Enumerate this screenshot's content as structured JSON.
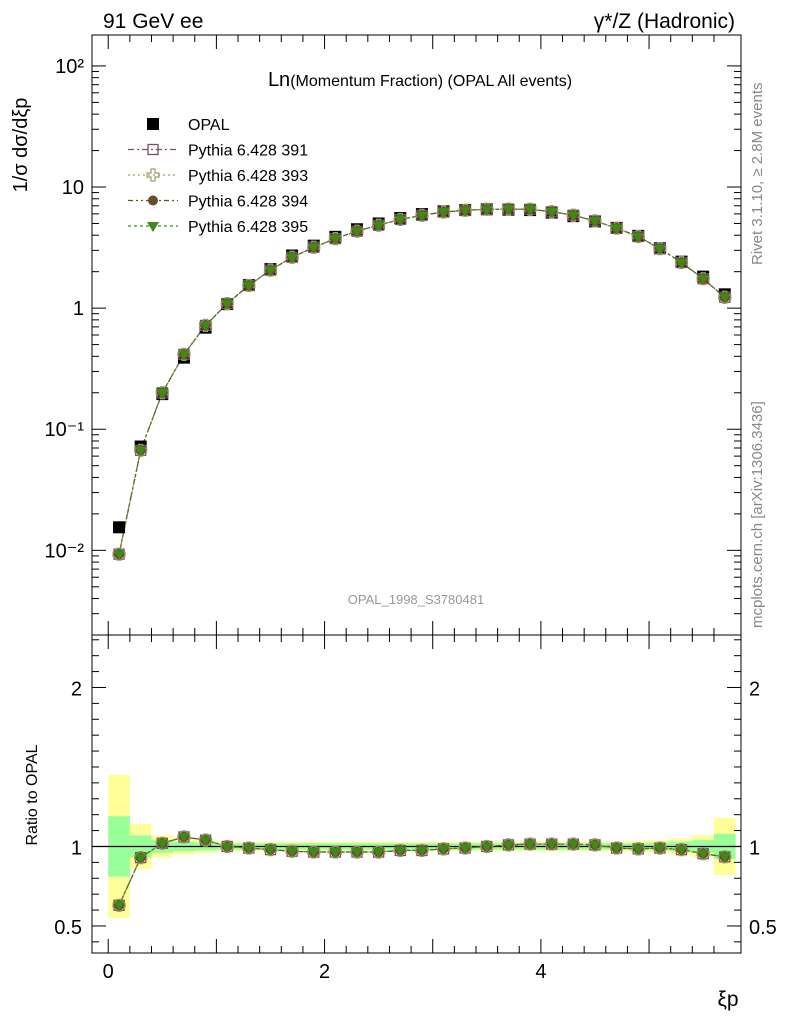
{
  "header": {
    "left": "91 GeV ee",
    "right": "γ*/Z (Hadronic)"
  },
  "side_labels": {
    "rivet": "Rivet 3.1.10, ≥ 2.8M events",
    "mcplots": "mcplots.cern.ch [arXiv:1306.3436]"
  },
  "watermark": "OPAL_1998_S3780481",
  "colors": {
    "data": "#000000",
    "s391": "#7b4f63",
    "s393": "#a09a6a",
    "s394": "#6b4a2a",
    "s395": "#3f8a17",
    "band_inner": "#99ff99",
    "band_outer": "#ffff99"
  },
  "chart_data": [
    {
      "type": "scatter",
      "title_main": "Ln",
      "title_rest": "(Momentum Fraction) (OPAL All events)",
      "ylabel": "1/σ dσ/dξp",
      "yscale": "log",
      "ylim": [
        0.002,
        180
      ],
      "xlim": [
        -0.15,
        5.85
      ],
      "ytick_labels": [
        "10⁻²",
        "10⁻¹",
        "1",
        "10",
        "10²"
      ],
      "x": [
        0.1,
        0.3,
        0.5,
        0.7,
        0.9,
        1.1,
        1.3,
        1.5,
        1.7,
        1.9,
        2.1,
        2.3,
        2.5,
        2.7,
        2.9,
        3.1,
        3.3,
        3.5,
        3.7,
        3.9,
        4.1,
        4.3,
        4.5,
        4.7,
        4.9,
        5.1,
        5.3,
        5.5,
        5.7
      ],
      "legend": [
        "OPAL",
        "Pythia 6.428 391",
        "Pythia 6.428 393",
        "Pythia 6.428 394",
        "Pythia 6.428 395"
      ],
      "series": [
        {
          "name": "OPAL",
          "marker": "square-filled",
          "values": [
            0.0155,
            0.072,
            0.195,
            0.39,
            0.69,
            1.08,
            1.55,
            2.1,
            2.72,
            3.28,
            3.88,
            4.48,
            5.0,
            5.55,
            5.98,
            6.3,
            6.45,
            6.55,
            6.5,
            6.45,
            6.15,
            5.75,
            5.2,
            4.6,
            3.95,
            3.12,
            2.42,
            1.82,
            1.3
          ]
        },
        {
          "name": "Pythia 6.428 391",
          "marker": "square-open",
          "values": [
            0.0093,
            0.067,
            0.2,
            0.415,
            0.72,
            1.09,
            1.54,
            2.06,
            2.63,
            3.18,
            3.75,
            4.32,
            4.84,
            5.4,
            5.84,
            6.22,
            6.42,
            6.55,
            6.58,
            6.55,
            6.25,
            5.85,
            5.25,
            4.57,
            3.9,
            3.1,
            2.38,
            1.75,
            1.23
          ]
        },
        {
          "name": "Pythia 6.428 393",
          "marker": "cross-open",
          "values": [
            0.0093,
            0.067,
            0.2,
            0.415,
            0.72,
            1.09,
            1.54,
            2.06,
            2.63,
            3.18,
            3.75,
            4.32,
            4.84,
            5.4,
            5.84,
            6.22,
            6.42,
            6.55,
            6.58,
            6.55,
            6.25,
            5.85,
            5.25,
            4.57,
            3.9,
            3.1,
            2.38,
            1.75,
            1.23
          ]
        },
        {
          "name": "Pythia 6.428 394",
          "marker": "circle",
          "values": [
            0.0093,
            0.067,
            0.2,
            0.415,
            0.72,
            1.09,
            1.54,
            2.06,
            2.63,
            3.18,
            3.75,
            4.32,
            4.84,
            5.4,
            5.84,
            6.22,
            6.42,
            6.55,
            6.58,
            6.55,
            6.25,
            5.85,
            5.25,
            4.57,
            3.9,
            3.1,
            2.38,
            1.75,
            1.23
          ]
        },
        {
          "name": "Pythia 6.428 395",
          "marker": "triangle-down",
          "values": [
            0.0093,
            0.067,
            0.2,
            0.415,
            0.72,
            1.09,
            1.54,
            2.06,
            2.63,
            3.18,
            3.75,
            4.32,
            4.84,
            5.4,
            5.84,
            6.22,
            6.42,
            6.55,
            6.58,
            6.55,
            6.25,
            5.85,
            5.25,
            4.57,
            3.9,
            3.1,
            2.38,
            1.75,
            1.23
          ]
        }
      ]
    },
    {
      "type": "scatter",
      "ylabel": "Ratio to OPAL",
      "xlabel": "ξp",
      "ylim": [
        0.33,
        2.33
      ],
      "xlim": [
        -0.15,
        5.85
      ],
      "x_tick_labels": [
        "0",
        "2",
        "4"
      ],
      "y_tick_labels": [
        "0.5",
        "1",
        "2"
      ],
      "x": [
        0.1,
        0.3,
        0.5,
        0.7,
        0.9,
        1.1,
        1.3,
        1.5,
        1.7,
        1.9,
        2.1,
        2.3,
        2.5,
        2.7,
        2.9,
        3.1,
        3.3,
        3.5,
        3.7,
        3.9,
        4.1,
        4.3,
        4.5,
        4.7,
        4.9,
        5.1,
        5.3,
        5.5,
        5.7
      ],
      "band_inner_halfwidth": [
        0.19,
        0.07,
        0.04,
        0.03,
        0.025,
        0.02,
        0.02,
        0.02,
        0.02,
        0.02,
        0.02,
        0.02,
        0.02,
        0.02,
        0.02,
        0.02,
        0.02,
        0.02,
        0.02,
        0.02,
        0.02,
        0.02,
        0.02,
        0.02,
        0.02,
        0.025,
        0.03,
        0.04,
        0.08
      ],
      "band_outer_halfwidth": [
        0.45,
        0.14,
        0.07,
        0.05,
        0.04,
        0.03,
        0.03,
        0.03,
        0.03,
        0.03,
        0.03,
        0.03,
        0.03,
        0.03,
        0.03,
        0.03,
        0.03,
        0.03,
        0.03,
        0.03,
        0.03,
        0.03,
        0.03,
        0.03,
        0.035,
        0.04,
        0.05,
        0.07,
        0.18
      ],
      "series": [
        {
          "name": "Pythia 6.428 391",
          "values": [
            0.63,
            0.93,
            1.02,
            1.06,
            1.04,
            1.0,
            0.99,
            0.98,
            0.97,
            0.965,
            0.965,
            0.965,
            0.965,
            0.975,
            0.975,
            0.985,
            0.99,
            1.0,
            1.01,
            1.015,
            1.015,
            1.015,
            1.01,
            0.99,
            0.985,
            0.99,
            0.98,
            0.955,
            0.935
          ]
        },
        {
          "name": "Pythia 6.428 393",
          "values": [
            0.63,
            0.93,
            1.02,
            1.06,
            1.04,
            1.0,
            0.99,
            0.98,
            0.97,
            0.965,
            0.965,
            0.965,
            0.965,
            0.975,
            0.975,
            0.985,
            0.99,
            1.0,
            1.01,
            1.015,
            1.015,
            1.015,
            1.01,
            0.99,
            0.985,
            0.99,
            0.98,
            0.955,
            0.935
          ]
        },
        {
          "name": "Pythia 6.428 394",
          "values": [
            0.63,
            0.93,
            1.02,
            1.06,
            1.04,
            1.0,
            0.99,
            0.98,
            0.97,
            0.965,
            0.965,
            0.965,
            0.965,
            0.975,
            0.975,
            0.985,
            0.99,
            1.0,
            1.01,
            1.015,
            1.015,
            1.015,
            1.01,
            0.99,
            0.985,
            0.99,
            0.98,
            0.955,
            0.935
          ]
        },
        {
          "name": "Pythia 6.428 395",
          "values": [
            0.63,
            0.93,
            1.02,
            1.06,
            1.04,
            1.0,
            0.99,
            0.98,
            0.97,
            0.965,
            0.965,
            0.965,
            0.965,
            0.975,
            0.975,
            0.985,
            0.99,
            1.0,
            1.01,
            1.015,
            1.015,
            1.015,
            1.01,
            0.99,
            0.985,
            0.99,
            0.98,
            0.955,
            0.935
          ]
        }
      ]
    }
  ]
}
